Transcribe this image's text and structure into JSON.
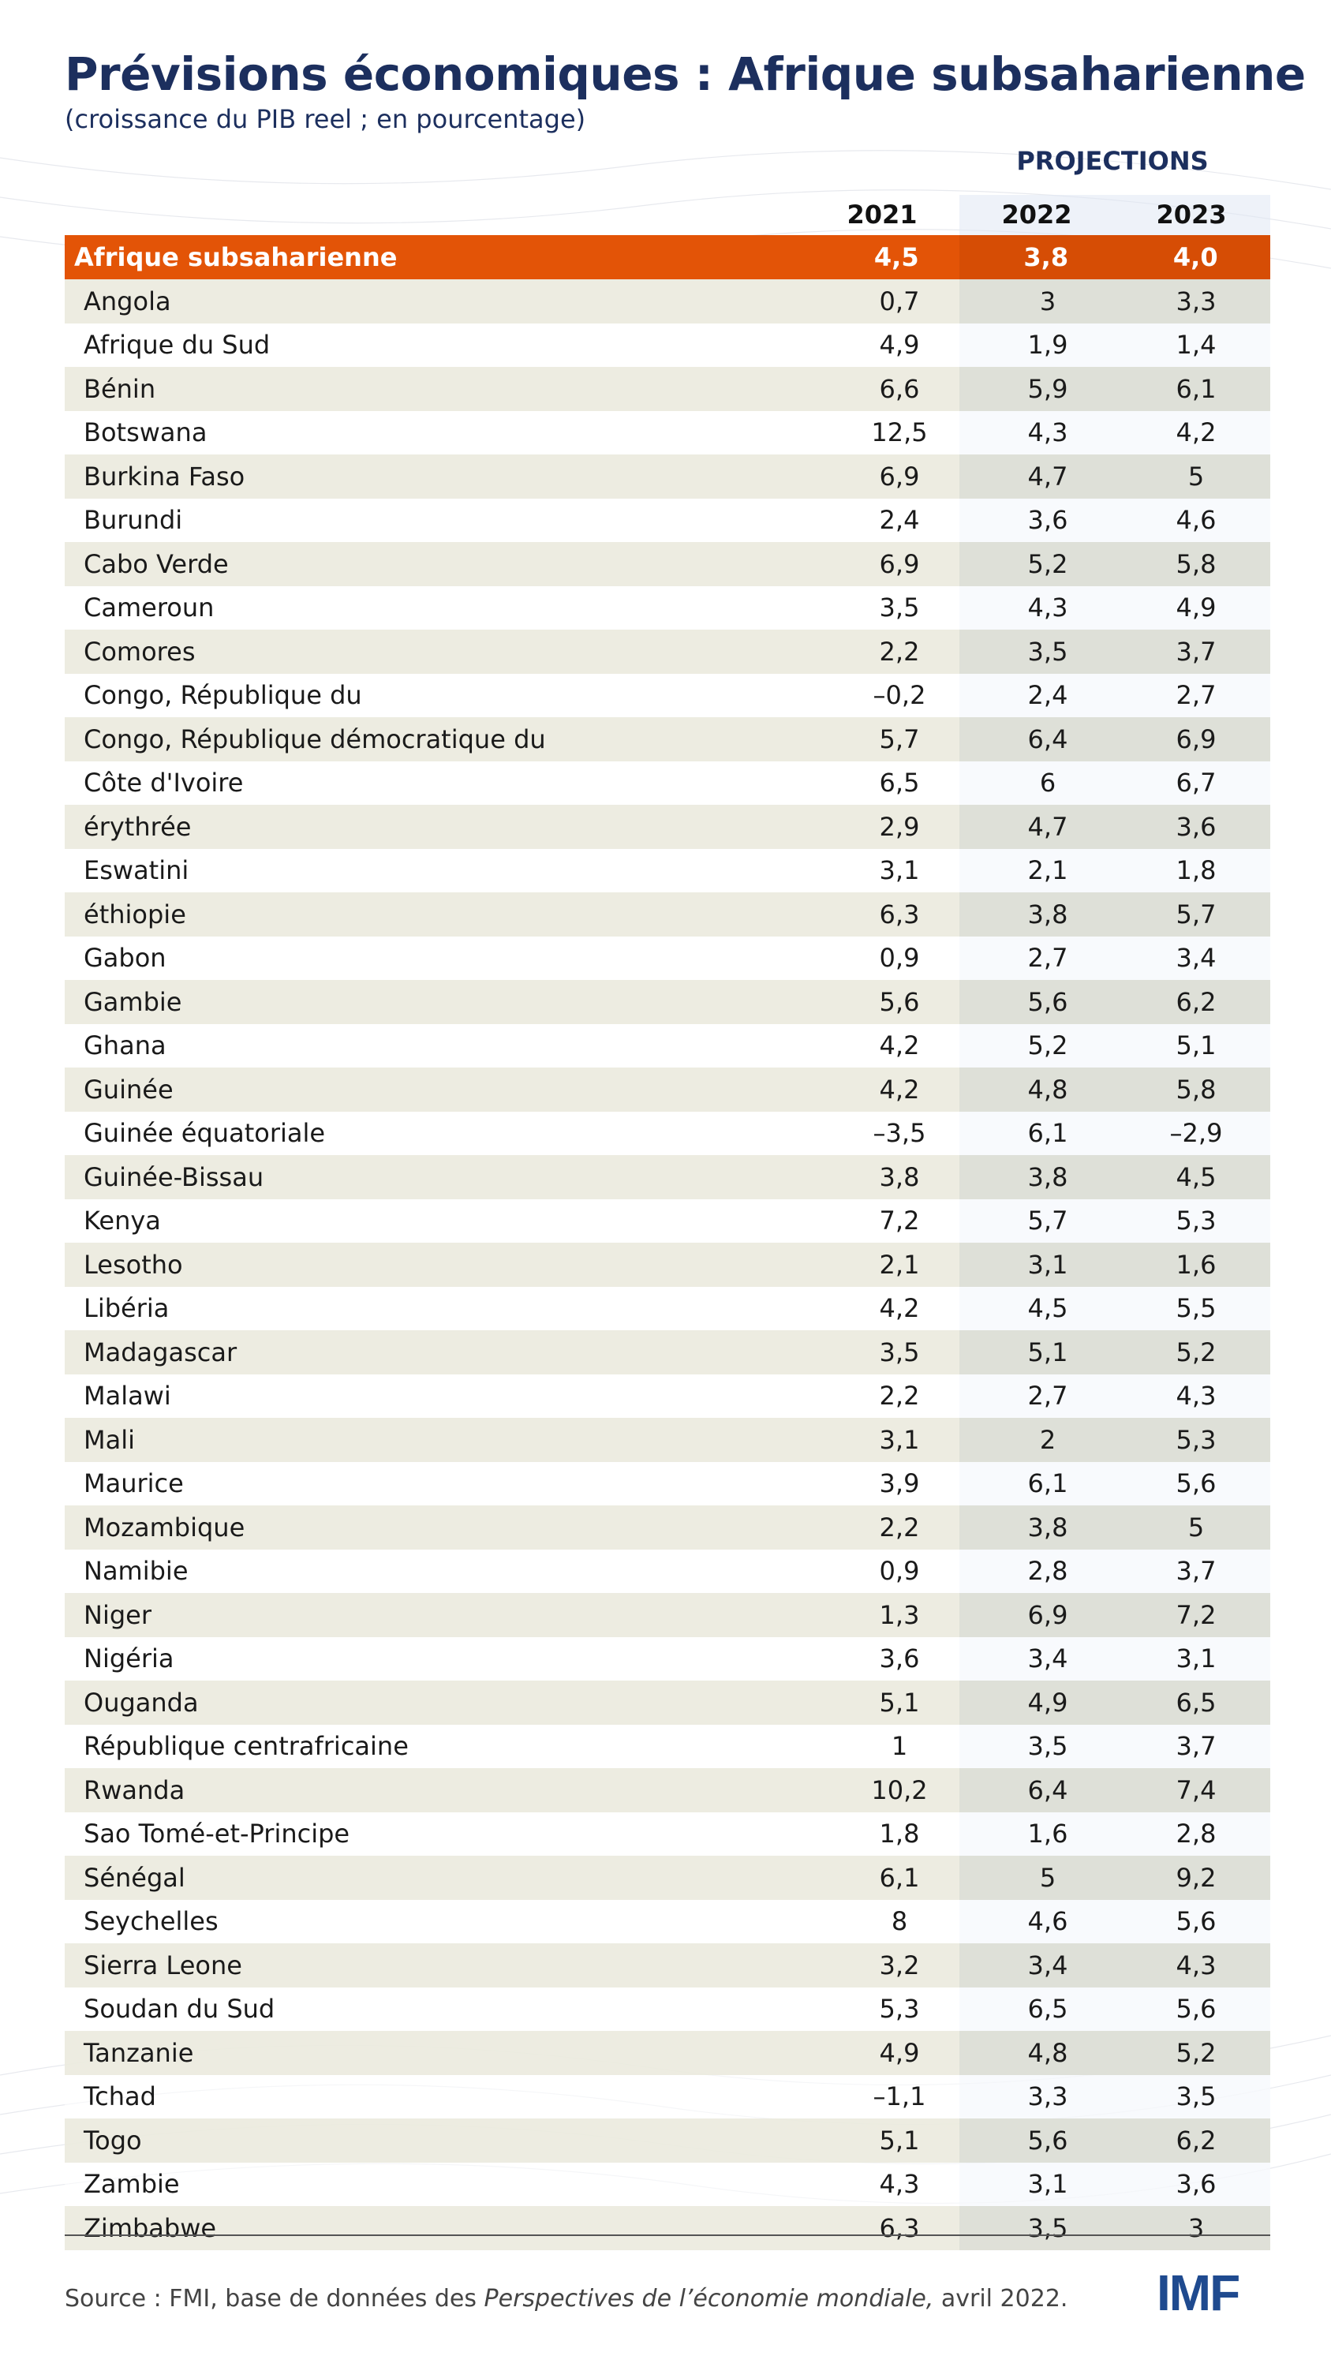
{
  "title": "Prévisions économiques : Afrique subsaharienne",
  "subtitle": "(croissance du PIB reel ; en pourcentage)",
  "projections_label": "PROJECTIONS",
  "columns": [
    "2021",
    "2022",
    "2023"
  ],
  "header_row": {
    "name": "Afrique subsaharienne",
    "values": [
      "4,5",
      "3,8",
      "4,0"
    ],
    "color": "#e35407"
  },
  "rows": [
    {
      "name": "Angola",
      "values": [
        "0,7",
        "3",
        "3,3"
      ]
    },
    {
      "name": "Afrique du Sud",
      "values": [
        "4,9",
        "1,9",
        "1,4"
      ]
    },
    {
      "name": "Bénin",
      "values": [
        "6,6",
        "5,9",
        "6,1"
      ]
    },
    {
      "name": "Botswana",
      "values": [
        "12,5",
        "4,3",
        "4,2"
      ]
    },
    {
      "name": "Burkina Faso",
      "values": [
        "6,9",
        "4,7",
        "5"
      ]
    },
    {
      "name": "Burundi",
      "values": [
        "2,4",
        "3,6",
        "4,6"
      ]
    },
    {
      "name": "Cabo Verde",
      "values": [
        "6,9",
        "5,2",
        "5,8"
      ]
    },
    {
      "name": "Cameroun",
      "values": [
        "3,5",
        "4,3",
        "4,9"
      ]
    },
    {
      "name": "Comores",
      "values": [
        "2,2",
        "3,5",
        "3,7"
      ]
    },
    {
      "name": "Congo, République du",
      "values": [
        "–0,2",
        "2,4",
        "2,7"
      ]
    },
    {
      "name": " Congo, République démocratique du",
      "values": [
        "5,7",
        "6,4",
        "6,9"
      ]
    },
    {
      "name": "Côte d'Ivoire",
      "values": [
        "6,5",
        "6",
        "6,7"
      ]
    },
    {
      "name": "érythrée",
      "values": [
        "2,9",
        "4,7",
        "3,6"
      ]
    },
    {
      "name": "Eswatini",
      "values": [
        "3,1",
        "2,1",
        "1,8"
      ]
    },
    {
      "name": "éthiopie",
      "values": [
        "6,3",
        "3,8",
        "5,7"
      ]
    },
    {
      "name": "Gabon",
      "values": [
        "0,9",
        "2,7",
        "3,4"
      ]
    },
    {
      "name": "Gambie",
      "values": [
        "5,6",
        "5,6",
        "6,2"
      ]
    },
    {
      "name": "Ghana",
      "values": [
        "4,2",
        "5,2",
        "5,1"
      ]
    },
    {
      "name": "Guinée",
      "values": [
        "4,2",
        "4,8",
        "5,8"
      ]
    },
    {
      "name": "Guinée équatoriale",
      "values": [
        "–3,5",
        "6,1",
        "–2,9"
      ]
    },
    {
      "name": "Guinée-Bissau",
      "values": [
        "3,8",
        "3,8",
        "4,5"
      ]
    },
    {
      "name": "Kenya",
      "values": [
        "7,2",
        "5,7",
        "5,3"
      ]
    },
    {
      "name": "Lesotho",
      "values": [
        "2,1",
        "3,1",
        "1,6"
      ]
    },
    {
      "name": "Libéria",
      "values": [
        "4,2",
        "4,5",
        "5,5"
      ]
    },
    {
      "name": "Madagascar",
      "values": [
        "3,5",
        "5,1",
        "5,2"
      ]
    },
    {
      "name": "Malawi",
      "values": [
        "2,2",
        "2,7",
        "4,3"
      ]
    },
    {
      "name": "Mali",
      "values": [
        "3,1",
        "2",
        "5,3"
      ]
    },
    {
      "name": "Maurice",
      "values": [
        "3,9",
        "6,1",
        "5,6"
      ]
    },
    {
      "name": "Mozambique",
      "values": [
        "2,2",
        "3,8",
        "5"
      ]
    },
    {
      "name": "Namibie",
      "values": [
        "0,9",
        "2,8",
        "3,7"
      ]
    },
    {
      "name": "Niger",
      "values": [
        "1,3",
        "6,9",
        "7,2"
      ]
    },
    {
      "name": "Nigéria",
      "values": [
        "3,6",
        "3,4",
        "3,1"
      ]
    },
    {
      "name": "Ouganda",
      "values": [
        "5,1",
        "4,9",
        "6,5"
      ]
    },
    {
      "name": "République centrafricaine",
      "values": [
        "1",
        "3,5",
        "3,7"
      ]
    },
    {
      "name": "Rwanda",
      "values": [
        "10,2",
        "6,4",
        "7,4"
      ]
    },
    {
      "name": "Sao Tomé-et-Principe",
      "values": [
        "1,8",
        "1,6",
        "2,8"
      ]
    },
    {
      "name": "Sénégal",
      "values": [
        "6,1",
        "5",
        "9,2"
      ]
    },
    {
      "name": "Seychelles",
      "values": [
        "8",
        "4,6",
        "5,6"
      ]
    },
    {
      "name": "Sierra Leone",
      "values": [
        "3,2",
        "3,4",
        "4,3"
      ]
    },
    {
      "name": "Soudan du Sud",
      "values": [
        "5,3",
        "6,5",
        "5,6"
      ]
    },
    {
      "name": "Tanzanie",
      "values": [
        "4,9",
        "4,8",
        "5,2"
      ]
    },
    {
      "name": "Tchad",
      "values": [
        "–1,1",
        "3,3",
        "3,5"
      ]
    },
    {
      "name": "Togo",
      "values": [
        "5,1",
        "5,6",
        "6,2"
      ]
    },
    {
      "name": "Zambie",
      "values": [
        "4,3",
        "3,1",
        "3,6"
      ]
    },
    {
      "name": "Zimbabwe",
      "values": [
        "6,3",
        "3,5",
        "3"
      ]
    }
  ],
  "source": {
    "prefix": "Source : FMI, base de données des ",
    "publication": "Perspectives de l’économie mondiale,",
    "suffix": " avril 2022."
  },
  "logo": {
    "text": "IMF",
    "color": "#1f4a8f"
  }
}
